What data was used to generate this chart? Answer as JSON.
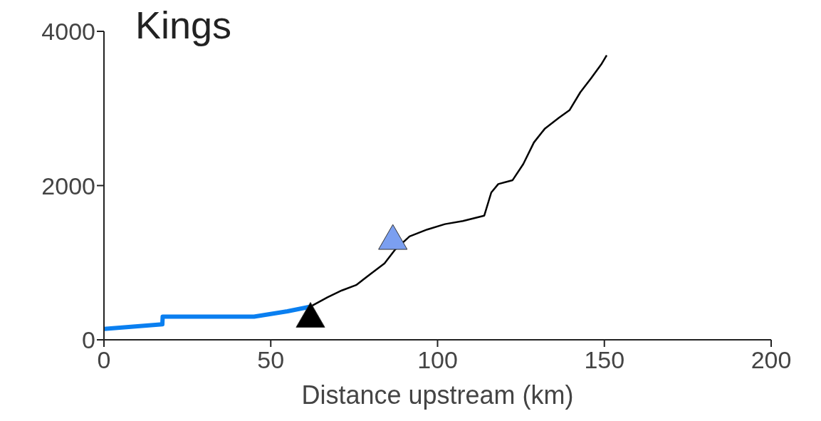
{
  "chart_data": {
    "type": "line",
    "title": "Kings",
    "xlabel": "Distance upstream (km)",
    "xlim": [
      0,
      200
    ],
    "xticks": [
      0,
      50,
      100,
      150,
      200
    ],
    "ylim": [
      0,
      4000
    ],
    "yticks": [
      0,
      2000,
      4000
    ],
    "grid": false,
    "marker": "none",
    "line_style": "solid",
    "series": [
      {
        "color": "#0a7ff0",
        "x": [
          0,
          17.5,
          17.6,
          30,
          45,
          55,
          61.9
        ],
        "values": [
          140,
          200,
          300,
          300,
          300,
          370,
          430
        ]
      },
      {
        "color": "#000000",
        "x": [
          61.9,
          67,
          71.3,
          75.6,
          79.8,
          84.1,
          87.3,
          91.6,
          96.9,
          102.2,
          107.6,
          114,
          116.1,
          118.2,
          122.5,
          125.7,
          128.9,
          132.2,
          136.4,
          139.6,
          142.8,
          146,
          149.2,
          150.7
        ],
        "values": [
          430,
          550,
          640,
          710,
          850,
          990,
          1170,
          1340,
          1430,
          1500,
          1540,
          1610,
          1910,
          2020,
          2070,
          2280,
          2560,
          2740,
          2880,
          2980,
          3210,
          3390,
          3580,
          3690
        ]
      },
      {
        "type": "scatter",
        "marker": "triangle",
        "color": "#000000",
        "x": [
          61.9
        ],
        "values": [
          270
        ]
      },
      {
        "type": "scatter",
        "marker": "triangle",
        "color": "#7b9ff0",
        "x": [
          86.6
        ],
        "values": [
          1280
        ]
      }
    ]
  }
}
